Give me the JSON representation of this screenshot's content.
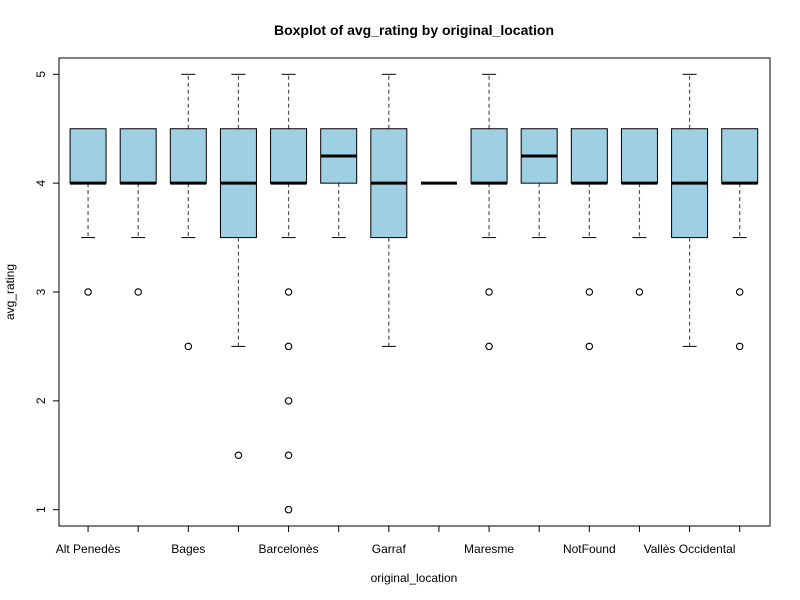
{
  "chart_data": {
    "type": "boxplot",
    "title": "Boxplot of avg_rating by original_location",
    "xlabel": "original_location",
    "ylabel": "avg_rating",
    "ylim": [
      0.85,
      5.15
    ],
    "yticks": [
      1,
      2,
      3,
      4,
      5
    ],
    "box_color": "#9ecfe2",
    "categories": [
      "Alt Penedès",
      "",
      "Bages",
      "",
      "Barcelonès",
      "",
      "Garraf",
      "",
      "Maresme",
      "",
      "NotFound",
      "",
      "Vallès Occidental",
      ""
    ],
    "boxes": [
      {
        "q1": 4.0,
        "median": 4.0,
        "q3": 4.5,
        "whisker_low": 3.5,
        "whisker_high": 4.5,
        "outliers": [
          3.0
        ]
      },
      {
        "q1": 4.0,
        "median": 4.0,
        "q3": 4.5,
        "whisker_low": 3.5,
        "whisker_high": 4.5,
        "outliers": [
          3.0
        ]
      },
      {
        "q1": 4.0,
        "median": 4.0,
        "q3": 4.5,
        "whisker_low": 3.5,
        "whisker_high": 5.0,
        "outliers": [
          2.5
        ]
      },
      {
        "q1": 3.5,
        "median": 4.0,
        "q3": 4.5,
        "whisker_low": 2.5,
        "whisker_high": 5.0,
        "outliers": [
          1.5
        ]
      },
      {
        "q1": 4.0,
        "median": 4.0,
        "q3": 4.5,
        "whisker_low": 3.5,
        "whisker_high": 5.0,
        "outliers": [
          3.0,
          2.5,
          2.0,
          1.5,
          1.0
        ]
      },
      {
        "q1": 4.0,
        "median": 4.25,
        "q3": 4.5,
        "whisker_low": 3.5,
        "whisker_high": 4.5,
        "outliers": []
      },
      {
        "q1": 3.5,
        "median": 4.0,
        "q3": 4.5,
        "whisker_low": 2.5,
        "whisker_high": 5.0,
        "outliers": []
      },
      {
        "q1": 4.0,
        "median": 4.0,
        "q3": 4.0,
        "whisker_low": 4.0,
        "whisker_high": 4.0,
        "outliers": []
      },
      {
        "q1": 4.0,
        "median": 4.0,
        "q3": 4.5,
        "whisker_low": 3.5,
        "whisker_high": 5.0,
        "outliers": [
          3.0,
          2.5
        ]
      },
      {
        "q1": 4.0,
        "median": 4.25,
        "q3": 4.5,
        "whisker_low": 3.5,
        "whisker_high": 4.5,
        "outliers": []
      },
      {
        "q1": 4.0,
        "median": 4.0,
        "q3": 4.5,
        "whisker_low": 3.5,
        "whisker_high": 4.5,
        "outliers": [
          3.0,
          2.5
        ]
      },
      {
        "q1": 4.0,
        "median": 4.0,
        "q3": 4.5,
        "whisker_low": 3.5,
        "whisker_high": 4.5,
        "outliers": [
          3.0
        ]
      },
      {
        "q1": 3.5,
        "median": 4.0,
        "q3": 4.5,
        "whisker_low": 2.5,
        "whisker_high": 5.0,
        "outliers": []
      },
      {
        "q1": 4.0,
        "median": 4.0,
        "q3": 4.5,
        "whisker_low": 3.5,
        "whisker_high": 4.5,
        "outliers": [
          3.0,
          2.5
        ]
      }
    ]
  }
}
